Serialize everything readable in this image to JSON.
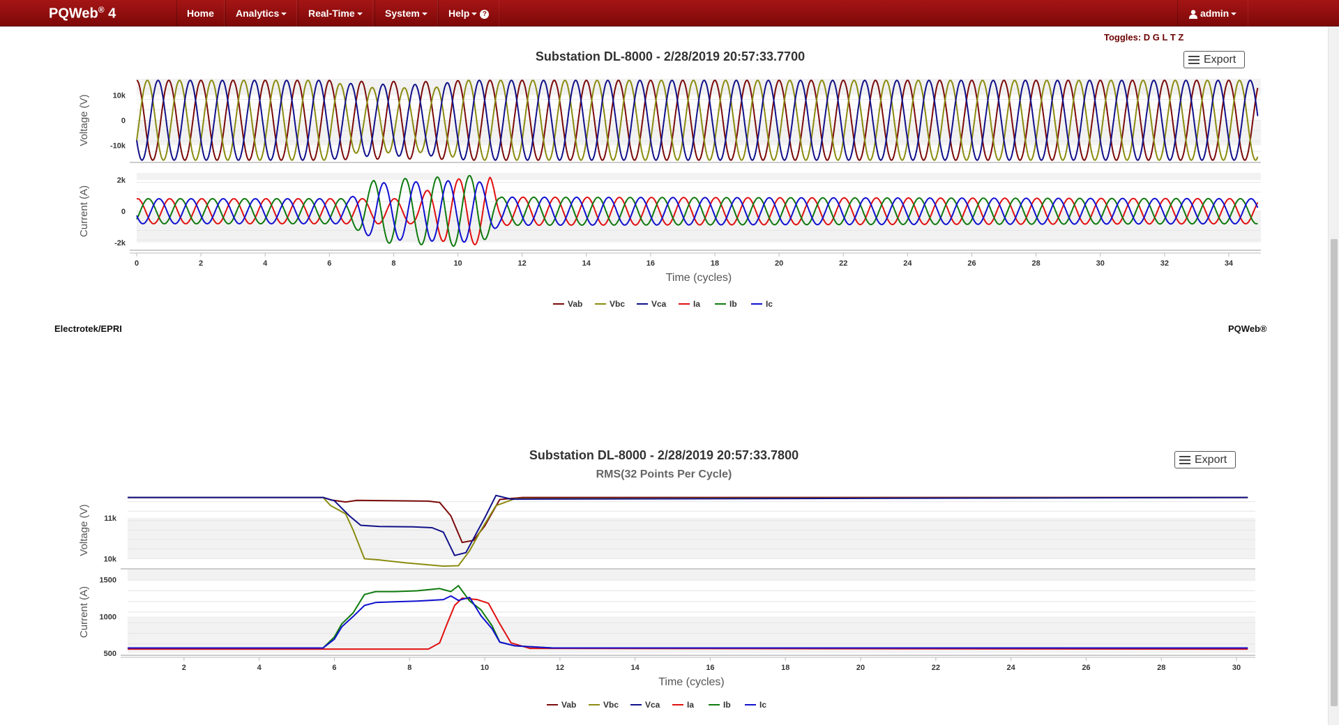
{
  "navbar": {
    "brand": "PQWeb",
    "brand_sup": "®",
    "brand_version": "4",
    "items": [
      {
        "label": "Home",
        "dropdown": false
      },
      {
        "label": "Analytics",
        "dropdown": true
      },
      {
        "label": "Real-Time",
        "dropdown": true
      },
      {
        "label": "System",
        "dropdown": true
      },
      {
        "label": "Help",
        "dropdown": true
      }
    ],
    "user": "admin",
    "colors": {
      "bg": "#8b0b0b",
      "text": "#ffffff"
    }
  },
  "toggles": "Toggles: D G L T Z",
  "export_label": "Export",
  "footer": {
    "left": "Electrotek/EPRI",
    "right": "PQWeb®"
  },
  "chart_data": [
    {
      "type": "line",
      "title": "Substation DL-8000 - 2/28/2019 20:57:33.7700",
      "subtitle": "",
      "xlabel": "Time (cycles)",
      "xlim": [
        0,
        35
      ],
      "xticks": [
        0,
        2,
        4,
        6,
        8,
        10,
        12,
        14,
        16,
        18,
        20,
        22,
        24,
        26,
        28,
        30,
        32,
        34
      ],
      "panels": [
        {
          "ylabel": "Voltage (V)",
          "ylim": [
            -16500,
            16500
          ],
          "yticks": [
            {
              "v": 10000,
              "label": "10k"
            },
            {
              "v": 0,
              "label": "0"
            },
            {
              "v": -10000,
              "label": "-10k"
            }
          ],
          "series": [
            {
              "name": "Vab",
              "color": "#7b0a0a",
              "kind": "sine",
              "phase_deg": 90,
              "amplitude": [
                [
                  0,
                  15900
                ],
                [
                  5.9,
                  15900
                ],
                [
                  6.8,
                  15500
                ],
                [
                  9.2,
                  15400
                ],
                [
                  10.3,
                  15900
                ],
                [
                  35,
                  15900
                ]
              ]
            },
            {
              "name": "Vbc",
              "color": "#8b8b10",
              "kind": "sine",
              "phase_deg": -30,
              "amplitude": [
                [
                  0,
                  15900
                ],
                [
                  5.9,
                  15900
                ],
                [
                  6.8,
                  13100
                ],
                [
                  9.2,
                  12800
                ],
                [
                  10.3,
                  15900
                ],
                [
                  35,
                  15900
                ]
              ]
            },
            {
              "name": "Vca",
              "color": "#10108a",
              "kind": "sine",
              "phase_deg": 210,
              "amplitude": [
                [
                  0,
                  15900
                ],
                [
                  5.9,
                  15900
                ],
                [
                  6.8,
                  14400
                ],
                [
                  9.2,
                  14200
                ],
                [
                  10.3,
                  15900
                ],
                [
                  35,
                  15900
                ]
              ]
            }
          ]
        },
        {
          "ylabel": "Current (A)",
          "ylim": [
            -2450,
            2450
          ],
          "yticks": [
            {
              "v": 2000,
              "label": "2k"
            },
            {
              "v": 0,
              "label": "0"
            },
            {
              "v": -2000,
              "label": "-2k"
            }
          ],
          "series": [
            {
              "name": "Ia",
              "color": "#e01010",
              "kind": "sine",
              "phase_deg": 80,
              "amplitude": [
                [
                  0,
                  800
                ],
                [
                  8.6,
                  800
                ],
                [
                  9.6,
                  2000
                ],
                [
                  11.0,
                  2200
                ],
                [
                  11.3,
                  900
                ],
                [
                  35,
                  800
                ]
              ]
            },
            {
              "name": "Ib",
              "color": "#0f7a0f",
              "kind": "sine",
              "phase_deg": -40,
              "amplitude": [
                [
                  0,
                  800
                ],
                [
                  6.6,
                  800
                ],
                [
                  7.4,
                  2000
                ],
                [
                  10.6,
                  2300
                ],
                [
                  11.3,
                  900
                ],
                [
                  35,
                  800
                ]
              ]
            },
            {
              "name": "Ic",
              "color": "#1010d0",
              "kind": "sine",
              "phase_deg": 200,
              "amplitude": [
                [
                  0,
                  800
                ],
                [
                  6.6,
                  800
                ],
                [
                  7.4,
                  1800
                ],
                [
                  10.6,
                  2000
                ],
                [
                  11.3,
                  900
                ],
                [
                  35,
                  800
                ]
              ]
            }
          ]
        }
      ],
      "legend": {
        "position": "bottom-center",
        "items": [
          "Vab",
          "Vbc",
          "Vca",
          "Ia",
          "Ib",
          "Ic"
        ]
      }
    },
    {
      "type": "line",
      "title": "Substation DL-8000 - 2/28/2019 20:57:33.7800",
      "subtitle": "RMS(32 Points Per Cycle)",
      "xlabel": "Time (cycles)",
      "xlim": [
        0.5,
        30.5
      ],
      "xticks": [
        2,
        4,
        6,
        8,
        10,
        12,
        14,
        16,
        18,
        20,
        22,
        24,
        26,
        28,
        30
      ],
      "panels": [
        {
          "ylabel": "Voltage (V)",
          "ylim": [
            9770,
            11630
          ],
          "yticks": [
            {
              "v": 11000,
              "label": "11k"
            },
            {
              "v": 10000,
              "label": "10k"
            }
          ],
          "series": [
            {
              "name": "Vab",
              "color": "#7b0a0a",
              "kind": "points",
              "points": [
                [
                  0.5,
                  11500
                ],
                [
                  5.7,
                  11500
                ],
                [
                  5.9,
                  11440
                ],
                [
                  6.3,
                  11390
                ],
                [
                  6.6,
                  11430
                ],
                [
                  7.5,
                  11420
                ],
                [
                  8.5,
                  11410
                ],
                [
                  8.8,
                  11380
                ],
                [
                  9.1,
                  11050
                ],
                [
                  9.4,
                  10400
                ],
                [
                  9.7,
                  10450
                ],
                [
                  10.0,
                  10800
                ],
                [
                  10.4,
                  11450
                ],
                [
                  11.0,
                  11500
                ],
                [
                  30.3,
                  11500
                ]
              ]
            },
            {
              "name": "Vbc",
              "color": "#8b8b10",
              "kind": "points",
              "points": [
                [
                  0.5,
                  11500
                ],
                [
                  5.7,
                  11500
                ],
                [
                  5.9,
                  11300
                ],
                [
                  6.3,
                  11100
                ],
                [
                  6.5,
                  10700
                ],
                [
                  6.8,
                  10000
                ],
                [
                  7.2,
                  9970
                ],
                [
                  7.9,
                  9900
                ],
                [
                  8.4,
                  9860
                ],
                [
                  8.9,
                  9820
                ],
                [
                  9.3,
                  9830
                ],
                [
                  9.6,
                  10200
                ],
                [
                  9.9,
                  10700
                ],
                [
                  10.3,
                  11300
                ],
                [
                  10.8,
                  11470
                ],
                [
                  30.3,
                  11500
                ]
              ]
            },
            {
              "name": "Vca",
              "color": "#10108a",
              "kind": "points",
              "points": [
                [
                  0.5,
                  11500
                ],
                [
                  5.7,
                  11500
                ],
                [
                  6.0,
                  11420
                ],
                [
                  6.4,
                  11050
                ],
                [
                  6.7,
                  10820
                ],
                [
                  7.2,
                  10790
                ],
                [
                  8.1,
                  10780
                ],
                [
                  8.6,
                  10760
                ],
                [
                  8.9,
                  10650
                ],
                [
                  9.2,
                  10080
                ],
                [
                  9.5,
                  10150
                ],
                [
                  10.0,
                  11000
                ],
                [
                  10.3,
                  11550
                ],
                [
                  10.7,
                  11460
                ],
                [
                  30.3,
                  11500
                ]
              ]
            }
          ]
        },
        {
          "ylabel": "Current (A)",
          "ylim": [
            480,
            1640
          ],
          "yticks": [
            {
              "v": 1500,
              "label": "1500"
            },
            {
              "v": 1000,
              "label": "1000"
            },
            {
              "v": 500,
              "label": "500"
            }
          ],
          "series": [
            {
              "name": "Ia",
              "color": "#e01010",
              "kind": "points",
              "points": [
                [
                  0.5,
                  555
                ],
                [
                  8.5,
                  555
                ],
                [
                  8.8,
                  640
                ],
                [
                  9.0,
                  900
                ],
                [
                  9.2,
                  1150
                ],
                [
                  9.4,
                  1250
                ],
                [
                  9.8,
                  1230
                ],
                [
                  10.1,
                  1180
                ],
                [
                  10.4,
                  900
                ],
                [
                  10.7,
                  640
                ],
                [
                  11.2,
                  565
                ],
                [
                  30.3,
                  555
                ]
              ]
            },
            {
              "name": "Ib",
              "color": "#0f7a0f",
              "kind": "points",
              "points": [
                [
                  0.5,
                  570
                ],
                [
                  5.7,
                  570
                ],
                [
                  6.0,
                  720
                ],
                [
                  6.2,
                  900
                ],
                [
                  6.5,
                  1050
                ],
                [
                  6.8,
                  1300
                ],
                [
                  7.1,
                  1340
                ],
                [
                  7.6,
                  1340
                ],
                [
                  8.2,
                  1350
                ],
                [
                  8.8,
                  1380
                ],
                [
                  9.1,
                  1340
                ],
                [
                  9.3,
                  1420
                ],
                [
                  9.6,
                  1210
                ],
                [
                  9.9,
                  1090
                ],
                [
                  10.2,
                  870
                ],
                [
                  10.4,
                  650
                ],
                [
                  10.8,
                  600
                ],
                [
                  11.8,
                  570
                ],
                [
                  30.3,
                  570
                ]
              ]
            },
            {
              "name": "Ic",
              "color": "#1010d0",
              "kind": "points",
              "points": [
                [
                  0.5,
                  570
                ],
                [
                  5.7,
                  570
                ],
                [
                  6.0,
                  690
                ],
                [
                  6.2,
                  860
                ],
                [
                  6.5,
                  1000
                ],
                [
                  6.8,
                  1150
                ],
                [
                  7.1,
                  1190
                ],
                [
                  7.6,
                  1200
                ],
                [
                  8.2,
                  1210
                ],
                [
                  8.9,
                  1230
                ],
                [
                  9.1,
                  1280
                ],
                [
                  9.3,
                  1220
                ],
                [
                  9.6,
                  1260
                ],
                [
                  9.9,
                  1010
                ],
                [
                  10.2,
                  830
                ],
                [
                  10.4,
                  650
                ],
                [
                  10.8,
                  600
                ],
                [
                  11.8,
                  570
                ],
                [
                  30.3,
                  570
                ]
              ]
            }
          ]
        }
      ],
      "legend": {
        "position": "bottom-center",
        "items": [
          "Vab",
          "Vbc",
          "Vca",
          "Ia",
          "Ib",
          "Ic"
        ]
      }
    }
  ]
}
